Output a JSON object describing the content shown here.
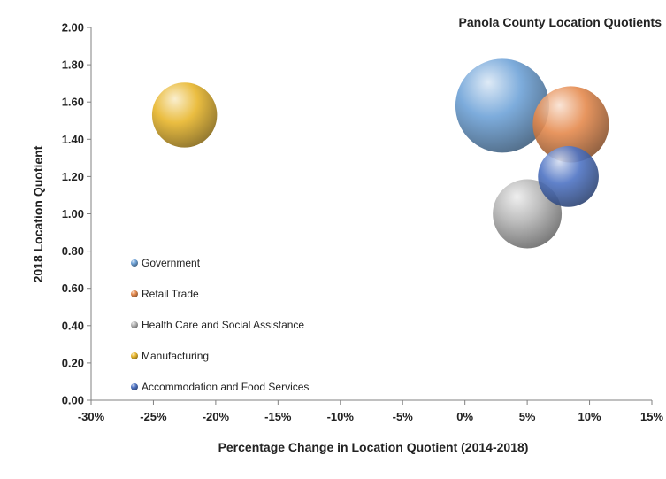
{
  "chart_data": {
    "type": "bubble",
    "title": "Panola County Location Quotients",
    "xlabel": "Percentage Change in Location Quotient (2014-2018)",
    "ylabel": "2018 Location Quotient",
    "xlim": [
      -0.3,
      0.15
    ],
    "ylim": [
      0,
      2.0
    ],
    "xticks": [
      "-30%",
      "-25%",
      "-20%",
      "-15%",
      "-10%",
      "-5%",
      "0%",
      "5%",
      "10%",
      "15%"
    ],
    "yticks": [
      "0.00",
      "0.20",
      "0.40",
      "0.60",
      "0.80",
      "1.00",
      "1.20",
      "1.40",
      "1.60",
      "1.80",
      "2.00"
    ],
    "legend_position": "inside-left",
    "grid": false,
    "series": [
      {
        "name": "Government",
        "x": 0.03,
        "y": 1.58,
        "size": 5.0,
        "color": "#6fa3d8"
      },
      {
        "name": "Retail Trade",
        "x": 0.085,
        "y": 1.48,
        "size": 3.3,
        "color": "#e58a4e"
      },
      {
        "name": "Health Care and Social Assistance",
        "x": 0.05,
        "y": 1.0,
        "size": 2.7,
        "color": "#b5b5b5"
      },
      {
        "name": "Manufacturing",
        "x": -0.225,
        "y": 1.53,
        "size": 2.4,
        "color": "#e8b62c"
      },
      {
        "name": "Accommodation and Food Services",
        "x": 0.083,
        "y": 1.2,
        "size": 2.1,
        "color": "#4f74c4"
      }
    ]
  }
}
